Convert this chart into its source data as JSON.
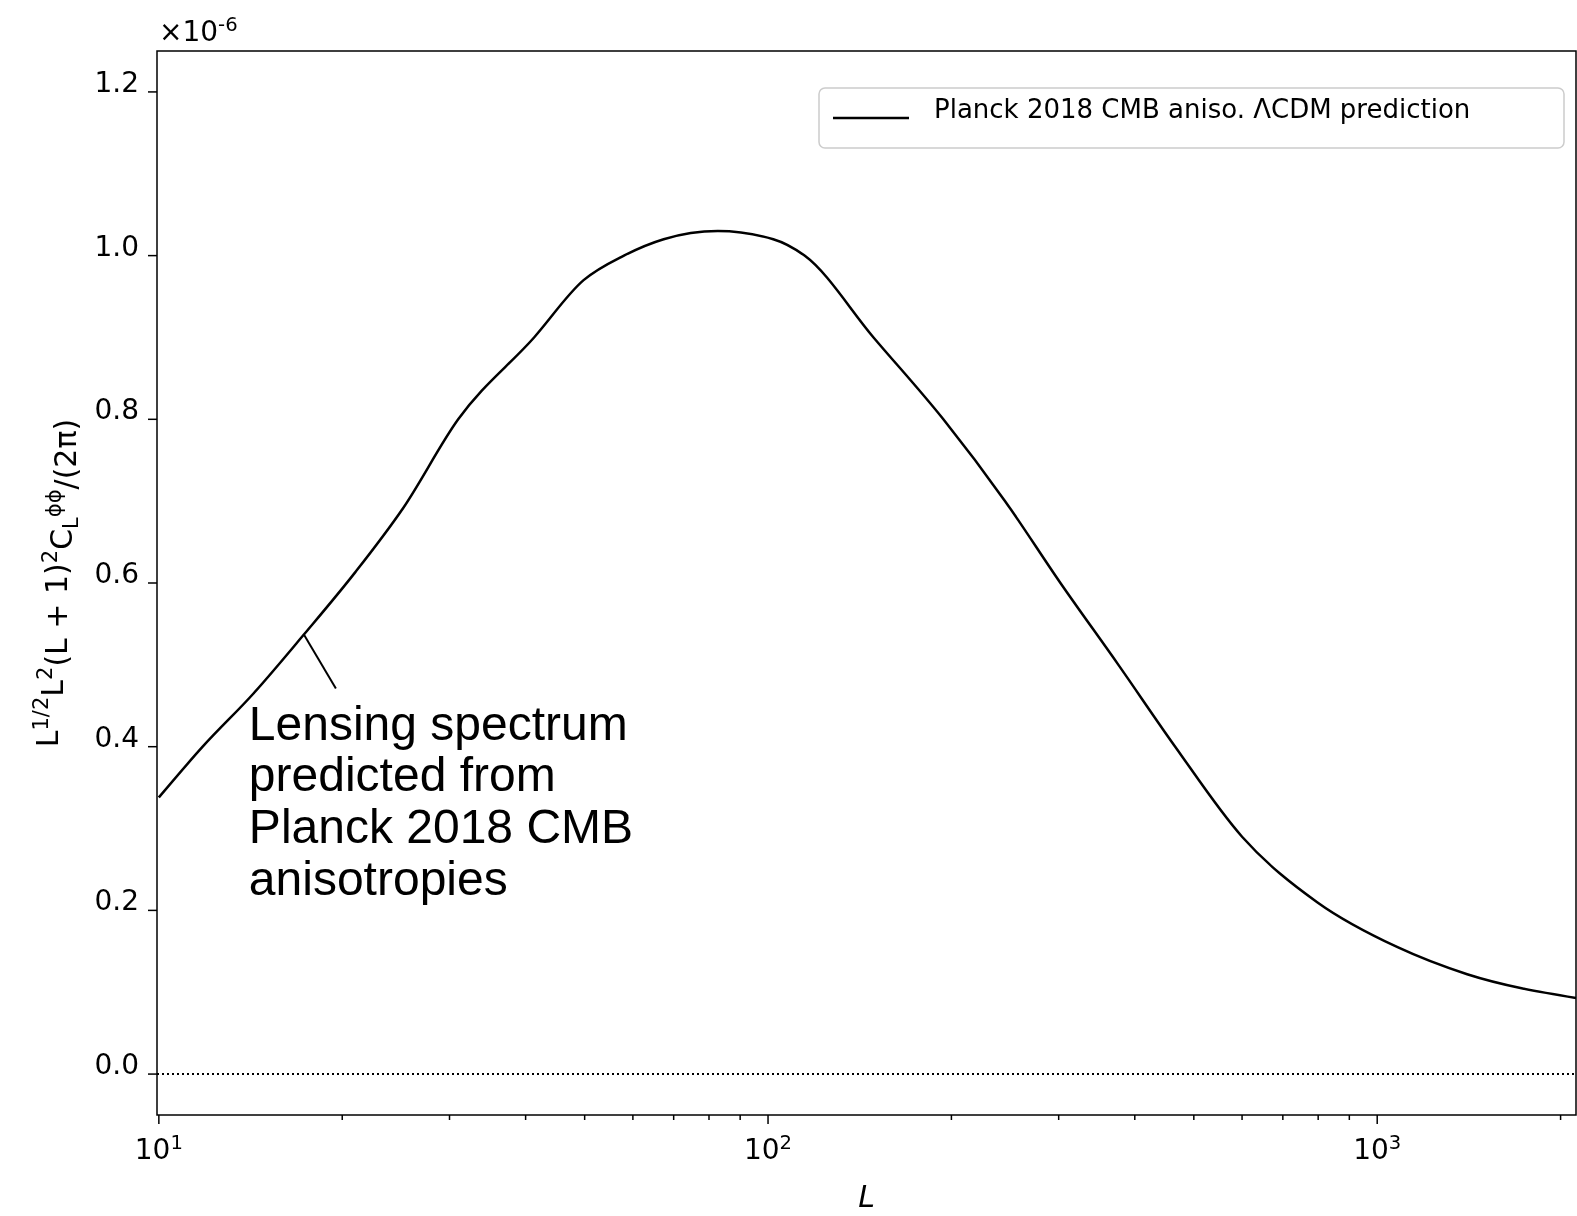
{
  "chart_data": {
    "type": "line",
    "xlabel": "L",
    "ylabel": "L$^{1/2}$L$^{2}$(L + 1)$^{2}$C$_{L}$$^{ϕϕ}$/(2π)",
    "log": "x",
    "xlim": [
      9.93,
      2120
    ],
    "ylim": [
      -0.05,
      1.25
    ],
    "xticks": [
      {
        "value": 10,
        "label": "10$^{1}$"
      },
      {
        "value": 20,
        "label": null
      },
      {
        "value": 30,
        "label": null
      },
      {
        "value": 40,
        "label": null
      },
      {
        "value": 50,
        "label": null
      },
      {
        "value": 60,
        "label": null
      },
      {
        "value": 70,
        "label": null
      },
      {
        "value": 80,
        "label": null
      },
      {
        "value": 90,
        "label": null
      },
      {
        "value": 100,
        "label": "10$^{2}$"
      },
      {
        "value": 200,
        "label": null
      },
      {
        "value": 300,
        "label": null
      },
      {
        "value": 400,
        "label": null
      },
      {
        "value": 500,
        "label": null
      },
      {
        "value": 600,
        "label": null
      },
      {
        "value": 700,
        "label": null
      },
      {
        "value": 800,
        "label": null
      },
      {
        "value": 900,
        "label": null
      },
      {
        "value": 1000,
        "label": "10$^{3}$"
      },
      {
        "value": 2000,
        "label": null
      }
    ],
    "yticks": [
      {
        "value": 0,
        "label": "0.0"
      },
      {
        "value": 0.2,
        "label": "0.2"
      },
      {
        "value": 0.4,
        "label": "0.4"
      },
      {
        "value": 0.6,
        "label": "0.6"
      },
      {
        "value": 0.8,
        "label": "0.8"
      },
      {
        "value": 1.0,
        "label": "1.0"
      },
      {
        "value": 1.2,
        "label": "1.2"
      }
    ],
    "legend": "top right",
    "grid": false,
    "marker": "none",
    "line_style": "solid",
    "series": [
      {
        "name": "Planck 2018 CMB aniso. ΛCDM prediction",
        "color": "#000000",
        "x": [
          10,
          11.8,
          14.3,
          17.3,
          21,
          25.2,
          31,
          41.3,
          49.8,
          58,
          67.4,
          82.7,
          102,
          114.8,
          149,
          194,
          245,
          302,
          376,
          466,
          600,
          797,
          1080,
          1405,
          2120
        ],
        "values": [
          0.338,
          0.4,
          0.465,
          0.537,
          0.613,
          0.692,
          0.8,
          0.9,
          0.97,
          1.0,
          1.02,
          1.03,
          1.02,
          1.0,
          0.9,
          0.8,
          0.7,
          0.6,
          0.5,
          0.4,
          0.29,
          0.21,
          0.155,
          0.122,
          0.093
        ]
      }
    ],
    "ref_lines": [
      {
        "axis": "y",
        "value": 0,
        "line_style": "dotted",
        "color": "#000000"
      }
    ],
    "annotations": [
      "×10$^{-6}$",
      {
        "text": "Lensing spectrum predicted from Planck 2018 CMB anisotropies",
        "x": 17.3,
        "y": 0.537
      }
    ]
  }
}
